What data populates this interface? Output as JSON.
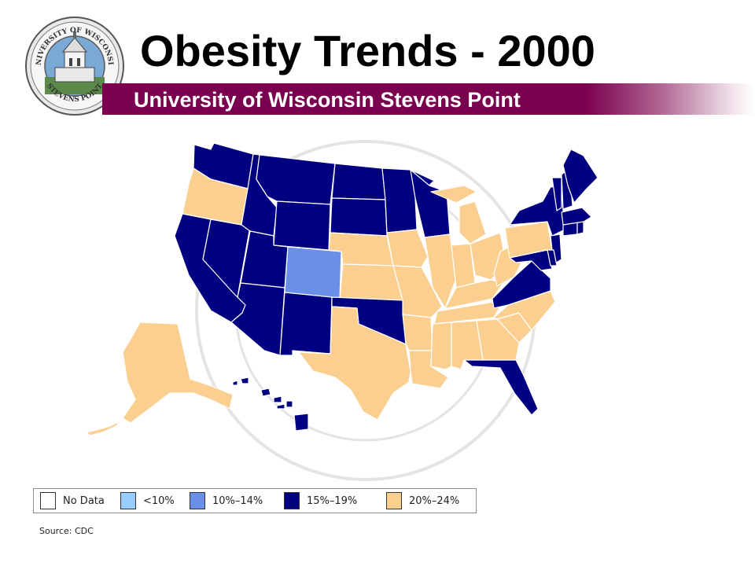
{
  "title": "Obesity Trends - 2000",
  "subtitle": "University of Wisconsin Stevens Point",
  "seal": {
    "text_top": "UNIVERSITY OF WISCONSIN",
    "text_bottom": "STEVENS POINT"
  },
  "colors": {
    "no_data": "#ffffff",
    "lt10": "#99ccff",
    "p10_14": "#6a8fe8",
    "p15_19": "#000080",
    "p20_24": "#fbcf8f",
    "band": "#7a004f"
  },
  "legend": [
    {
      "label": "No Data",
      "color": "#ffffff"
    },
    {
      "label": "<10%",
      "color": "#99ccff"
    },
    {
      "label": "10%–14%",
      "color": "#6a8fe8"
    },
    {
      "label": "15%–19%",
      "color": "#000080"
    },
    {
      "label": "20%–24%",
      "color": "#fbcf8f"
    }
  ],
  "source": "Source: CDC",
  "states": [
    {
      "abbr": "WA",
      "cat": "15%–19%"
    },
    {
      "abbr": "OR",
      "cat": "20%–24%"
    },
    {
      "abbr": "CA",
      "cat": "15%–19%"
    },
    {
      "abbr": "NV",
      "cat": "15%–19%"
    },
    {
      "abbr": "ID",
      "cat": "15%–19%"
    },
    {
      "abbr": "MT",
      "cat": "15%–19%"
    },
    {
      "abbr": "WY",
      "cat": "15%–19%"
    },
    {
      "abbr": "UT",
      "cat": "15%–19%"
    },
    {
      "abbr": "CO",
      "cat": "10%–14%"
    },
    {
      "abbr": "AZ",
      "cat": "15%–19%"
    },
    {
      "abbr": "NM",
      "cat": "15%–19%"
    },
    {
      "abbr": "ND",
      "cat": "15%–19%"
    },
    {
      "abbr": "SD",
      "cat": "15%–19%"
    },
    {
      "abbr": "NE",
      "cat": "20%–24%"
    },
    {
      "abbr": "KS",
      "cat": "20%–24%"
    },
    {
      "abbr": "OK",
      "cat": "15%–19%"
    },
    {
      "abbr": "TX",
      "cat": "20%–24%"
    },
    {
      "abbr": "MN",
      "cat": "15%–19%"
    },
    {
      "abbr": "IA",
      "cat": "20%–24%"
    },
    {
      "abbr": "MO",
      "cat": "20%–24%"
    },
    {
      "abbr": "AR",
      "cat": "20%–24%"
    },
    {
      "abbr": "LA",
      "cat": "20%–24%"
    },
    {
      "abbr": "WI",
      "cat": "15%–19%"
    },
    {
      "abbr": "IL",
      "cat": "20%–24%"
    },
    {
      "abbr": "MI",
      "cat": "20%–24%"
    },
    {
      "abbr": "IN",
      "cat": "20%–24%"
    },
    {
      "abbr": "OH",
      "cat": "20%–24%"
    },
    {
      "abbr": "KY",
      "cat": "20%–24%"
    },
    {
      "abbr": "TN",
      "cat": "20%–24%"
    },
    {
      "abbr": "MS",
      "cat": "20%–24%"
    },
    {
      "abbr": "AL",
      "cat": "20%–24%"
    },
    {
      "abbr": "GA",
      "cat": "20%–24%"
    },
    {
      "abbr": "FL",
      "cat": "15%–19%"
    },
    {
      "abbr": "SC",
      "cat": "20%–24%"
    },
    {
      "abbr": "NC",
      "cat": "20%–24%"
    },
    {
      "abbr": "VA",
      "cat": "15%–19%"
    },
    {
      "abbr": "WV",
      "cat": "20%–24%"
    },
    {
      "abbr": "PA",
      "cat": "20%–24%"
    },
    {
      "abbr": "NY",
      "cat": "15%–19%"
    },
    {
      "abbr": "NJ",
      "cat": "15%–19%"
    },
    {
      "abbr": "MD",
      "cat": "15%–19%"
    },
    {
      "abbr": "DE",
      "cat": "15%–19%"
    },
    {
      "abbr": "CT",
      "cat": "15%–19%"
    },
    {
      "abbr": "RI",
      "cat": "15%–19%"
    },
    {
      "abbr": "MA",
      "cat": "15%–19%"
    },
    {
      "abbr": "VT",
      "cat": "15%–19%"
    },
    {
      "abbr": "NH",
      "cat": "15%–19%"
    },
    {
      "abbr": "ME",
      "cat": "15%–19%"
    },
    {
      "abbr": "AK",
      "cat": "20%–24%"
    },
    {
      "abbr": "HI",
      "cat": "15%–19%"
    }
  ]
}
